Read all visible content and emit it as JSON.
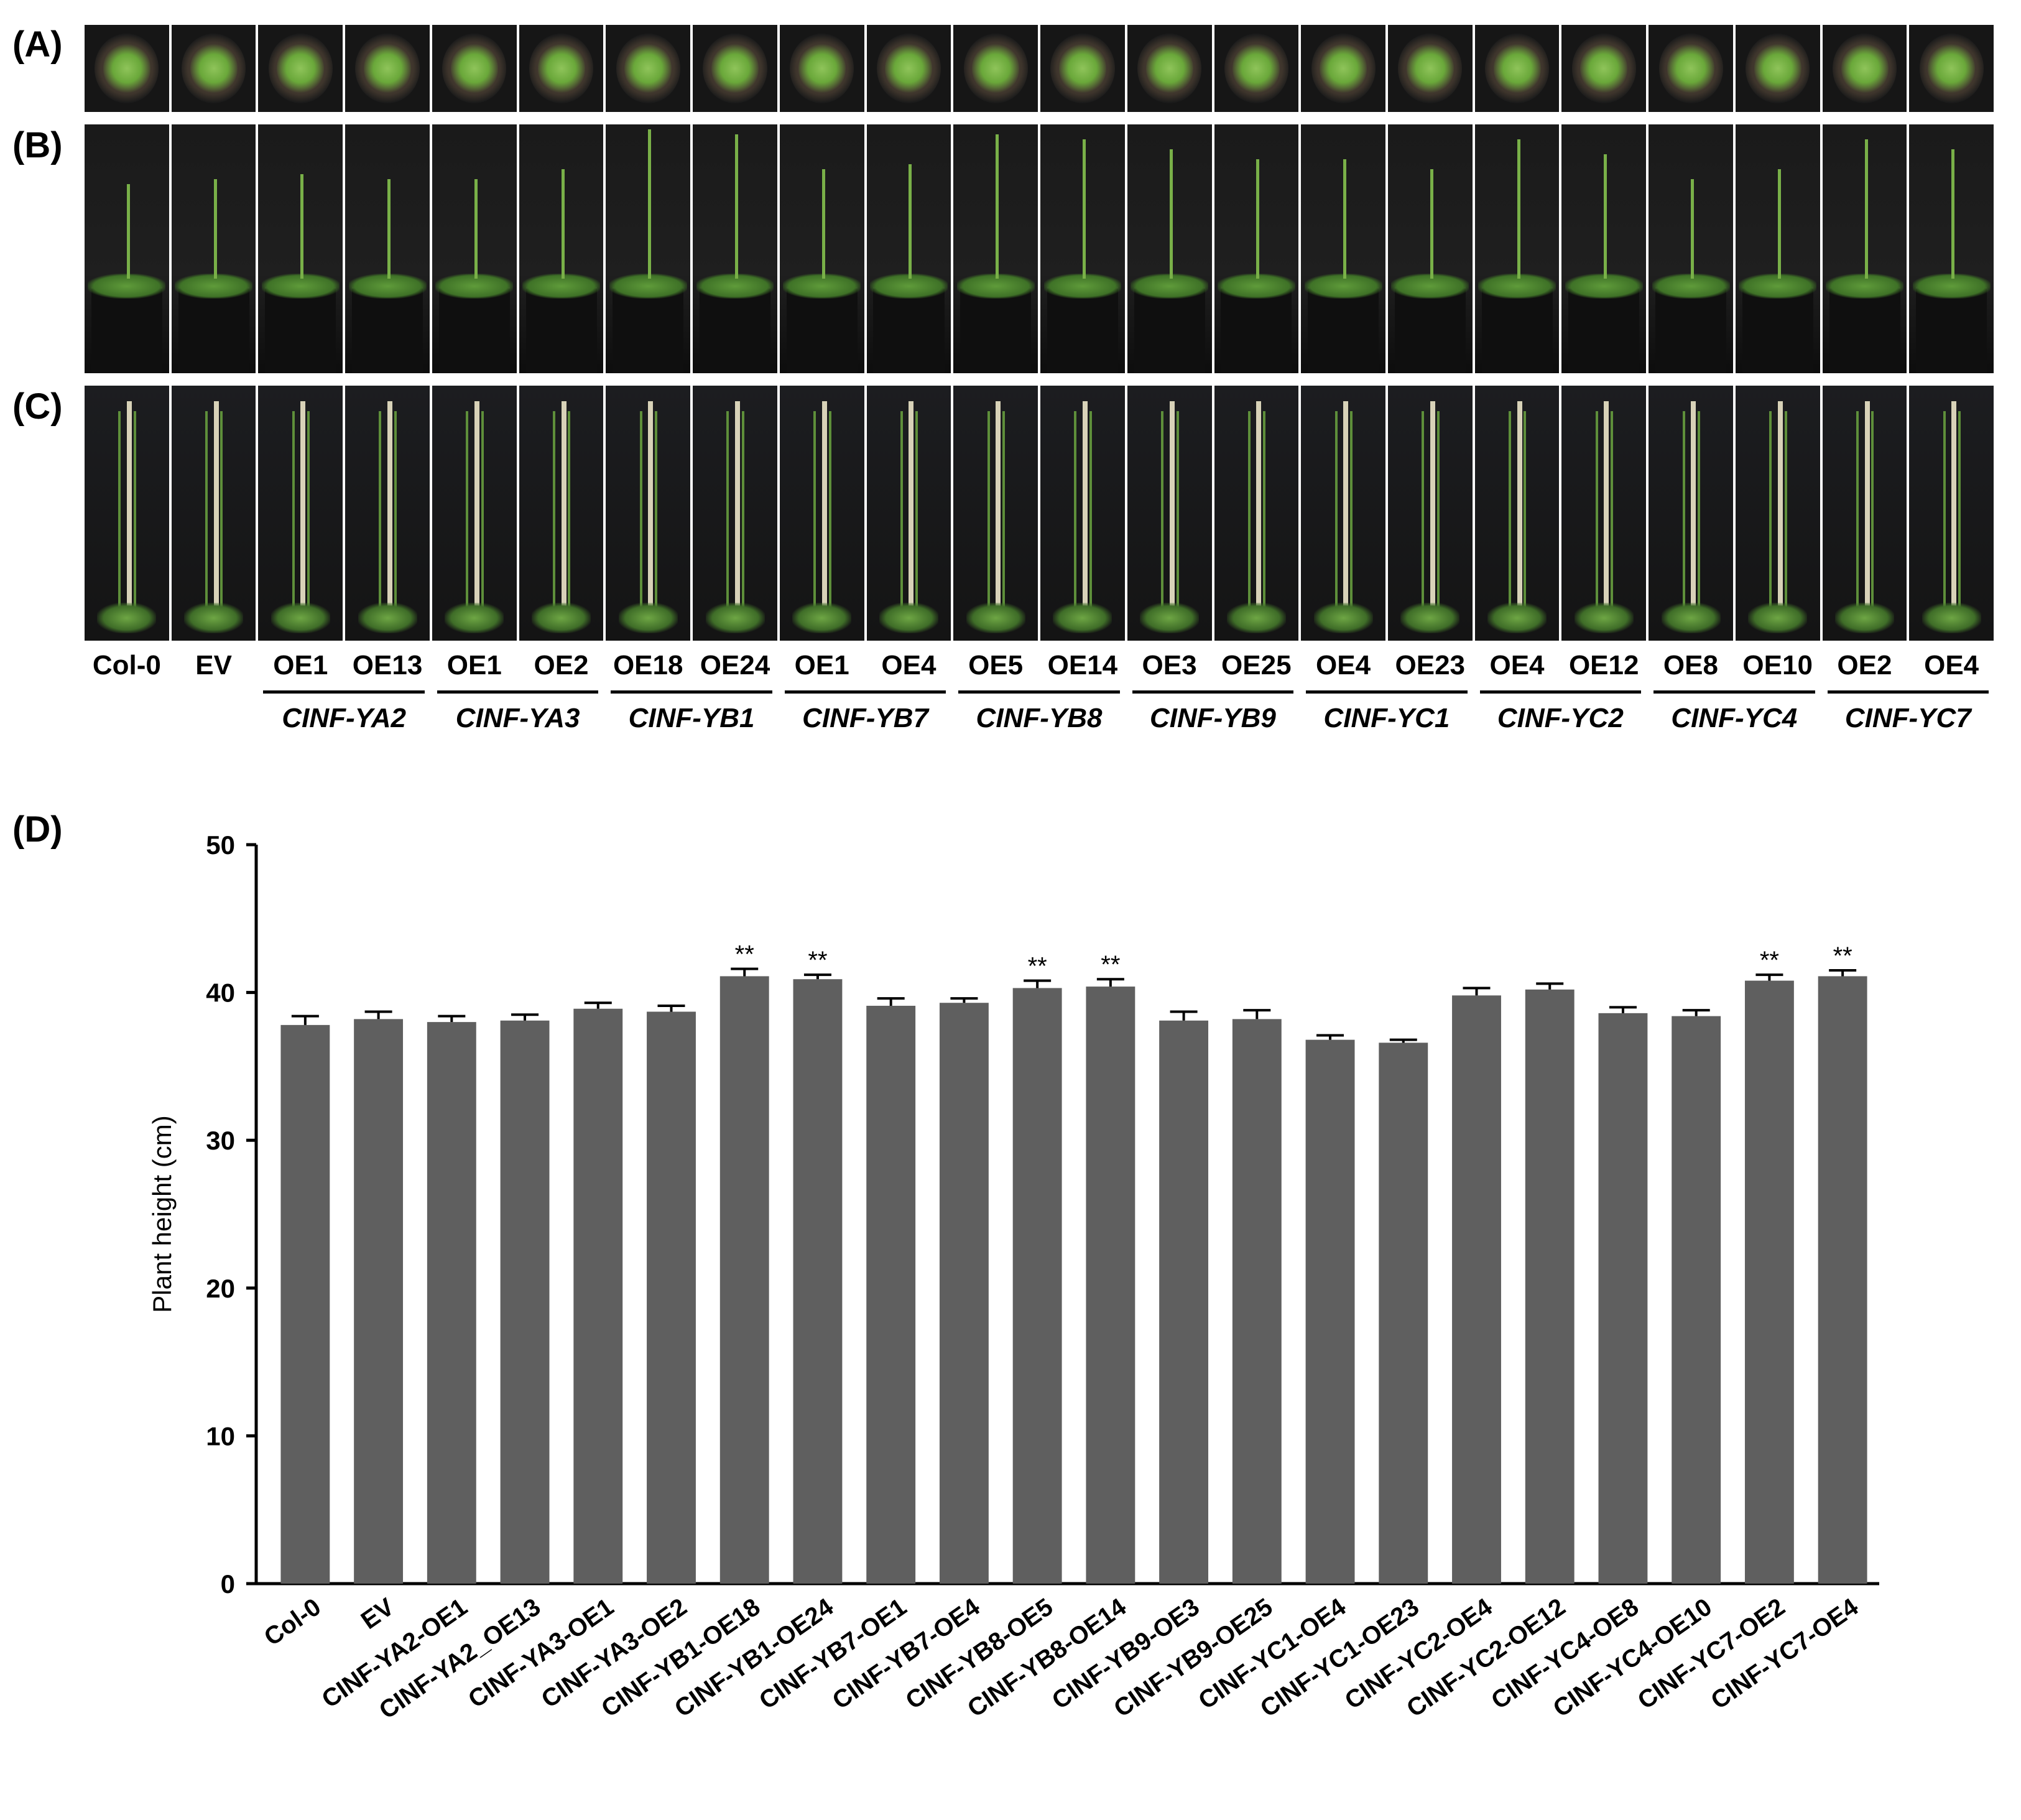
{
  "panels": {
    "a_label": "(A)",
    "b_label": "(B)",
    "c_label": "(C)",
    "d_label": "(D)"
  },
  "genotypes": [
    "Col-0",
    "EV",
    "OE1",
    "OE13",
    "OE1",
    "OE2",
    "OE18",
    "OE24",
    "OE1",
    "OE4",
    "OE5",
    "OE14",
    "OE3",
    "OE25",
    "OE4",
    "OE23",
    "OE4",
    "OE12",
    "OE8",
    "OE10",
    "OE2",
    "OE4"
  ],
  "genes": [
    "CINF-YA2",
    "CINF-YA3",
    "CINF-YB1",
    "CINF-YB7",
    "CINF-YB8",
    "CINF-YB9",
    "CINF-YC1",
    "CINF-YC2",
    "CINF-YC4",
    "CINF-YC7"
  ],
  "chart_data": {
    "type": "bar",
    "title": "",
    "xlabel": "",
    "ylabel": "Plant height (cm)",
    "ylim": [
      0,
      50
    ],
    "yticks": [
      0,
      10,
      20,
      30,
      40,
      50
    ],
    "bar_color": "#5f5f5f",
    "categories": [
      "Col-0",
      "EV",
      "CINF-YA2-OE1",
      "CINF-YA2_OE13",
      "CINF-YA3-OE1",
      "CINF-YA3-OE2",
      "CINF-YB1-OE18",
      "CINF-YB1-OE24",
      "CINF-YB7-OE1",
      "CINF-YB7-OE4",
      "CINF-YB8-OE5",
      "CINF-YB8-OE14",
      "CINF-YB9-OE3",
      "CINF-YB9-OE25",
      "CINF-YC1-OE4",
      "CINF-YC1-OE23",
      "CINF-YC2-OE4",
      "CINF-YC2-OE12",
      "CINF-YC4-OE8",
      "CINF-YC4-OE10",
      "CINF-YC7-OE2",
      "CINF-YC7-OE4"
    ],
    "values": [
      37.8,
      38.2,
      38.0,
      38.1,
      38.9,
      38.7,
      41.1,
      40.9,
      39.1,
      39.3,
      40.3,
      40.4,
      38.1,
      38.2,
      36.8,
      36.6,
      39.8,
      40.2,
      38.6,
      38.4,
      40.8,
      41.1
    ],
    "errors": [
      0.6,
      0.5,
      0.4,
      0.4,
      0.4,
      0.4,
      0.5,
      0.3,
      0.5,
      0.3,
      0.5,
      0.5,
      0.6,
      0.6,
      0.3,
      0.2,
      0.5,
      0.4,
      0.4,
      0.4,
      0.4,
      0.4
    ],
    "annotations": [
      "",
      "",
      "",
      "",
      "",
      "",
      "**",
      "**",
      "",
      "",
      "**",
      "**",
      "",
      "",
      "",
      "",
      "",
      "",
      "",
      "",
      "**",
      "**"
    ]
  }
}
